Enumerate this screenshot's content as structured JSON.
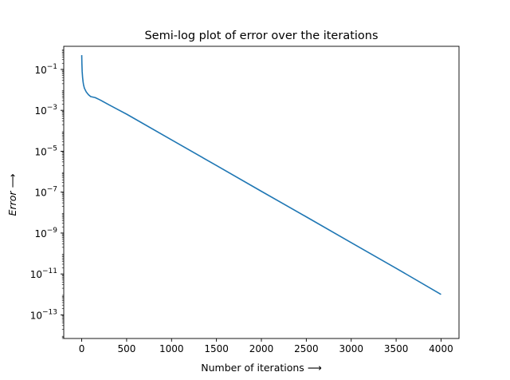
{
  "chart_data": {
    "type": "line",
    "title": "Semi-log plot of error over the iterations",
    "xlabel": "Number of iterations",
    "xlabel_arrow": "⟶",
    "ylabel": "Error",
    "ylabel_arrow": "⟶",
    "yscale": "log",
    "xlim": [
      -200,
      4200
    ],
    "ylim": [
      7e-15,
      1.35
    ],
    "grid": false,
    "line_color": "#1f77b4",
    "x_ticks": [
      {
        "value": 0,
        "label": "0"
      },
      {
        "value": 500,
        "label": "500"
      },
      {
        "value": 1000,
        "label": "1000"
      },
      {
        "value": 1500,
        "label": "1500"
      },
      {
        "value": 2000,
        "label": "2000"
      },
      {
        "value": 2500,
        "label": "2500"
      },
      {
        "value": 3000,
        "label": "3000"
      },
      {
        "value": 3500,
        "label": "3500"
      },
      {
        "value": 4000,
        "label": "4000"
      }
    ],
    "y_ticks": [
      {
        "value": 0.1,
        "base": "10",
        "exp": "−1"
      },
      {
        "value": 0.001,
        "base": "10",
        "exp": "−3"
      },
      {
        "value": 1e-05,
        "base": "10",
        "exp": "−5"
      },
      {
        "value": 1e-07,
        "base": "10",
        "exp": "−7"
      },
      {
        "value": 1e-09,
        "base": "10",
        "exp": "−9"
      },
      {
        "value": 1e-11,
        "base": "10",
        "exp": "−11"
      },
      {
        "value": 1e-13,
        "base": "10",
        "exp": "−13"
      }
    ],
    "series": [
      {
        "x": [
          0,
          2,
          5,
          10,
          15,
          20,
          30,
          50,
          75,
          100,
          150,
          200,
          300,
          400,
          500,
          1000,
          1500,
          2000,
          2500,
          3000,
          3500,
          4000
        ],
        "y": [
          0.5,
          0.2,
          0.08,
          0.04,
          0.025,
          0.018,
          0.012,
          0.008,
          0.0058,
          0.0047,
          0.0042,
          0.0033,
          0.0019,
          0.00111,
          0.00065,
          3.6e-05,
          2e-06,
          1.1e-07,
          6.2e-09,
          3.4e-10,
          1.9e-11,
          1e-12
        ]
      }
    ]
  }
}
